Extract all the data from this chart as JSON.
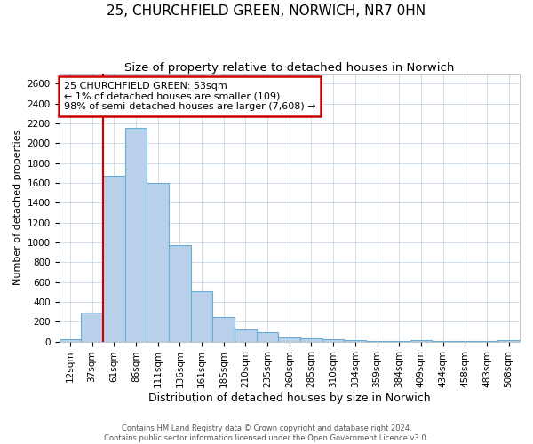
{
  "title1": "25, CHURCHFIELD GREEN, NORWICH, NR7 0HN",
  "title2": "Size of property relative to detached houses in Norwich",
  "xlabel": "Distribution of detached houses by size in Norwich",
  "ylabel": "Number of detached properties",
  "categories": [
    "12sqm",
    "37sqm",
    "61sqm",
    "86sqm",
    "111sqm",
    "136sqm",
    "161sqm",
    "185sqm",
    "210sqm",
    "235sqm",
    "260sqm",
    "285sqm",
    "310sqm",
    "334sqm",
    "359sqm",
    "384sqm",
    "409sqm",
    "434sqm",
    "458sqm",
    "483sqm",
    "508sqm"
  ],
  "values": [
    20,
    295,
    1670,
    2150,
    1600,
    970,
    505,
    250,
    120,
    95,
    40,
    35,
    22,
    10,
    8,
    7,
    10,
    5,
    8,
    5,
    12
  ],
  "bar_color": "#b8d0ea",
  "bar_edge_color": "#6aaed6",
  "vline_color": "#cc0000",
  "vline_index": 2,
  "annotation_text": "25 CHURCHFIELD GREEN: 53sqm\n← 1% of detached houses are smaller (109)\n98% of semi-detached houses are larger (7,608) →",
  "annotation_box_color": "#ffffff",
  "annotation_box_edge": "#cc0000",
  "ylim": [
    0,
    2700
  ],
  "yticks": [
    0,
    200,
    400,
    600,
    800,
    1000,
    1200,
    1400,
    1600,
    1800,
    2000,
    2200,
    2400,
    2600
  ],
  "footer1": "Contains HM Land Registry data © Crown copyright and database right 2024.",
  "footer2": "Contains public sector information licensed under the Open Government Licence v3.0.",
  "bg_color": "#ffffff",
  "grid_color": "#c8d8e8",
  "title1_fontsize": 11,
  "title2_fontsize": 9.5,
  "tick_fontsize": 7.5,
  "xlabel_fontsize": 9,
  "ylabel_fontsize": 8,
  "footer_fontsize": 6,
  "annotation_fontsize": 8
}
